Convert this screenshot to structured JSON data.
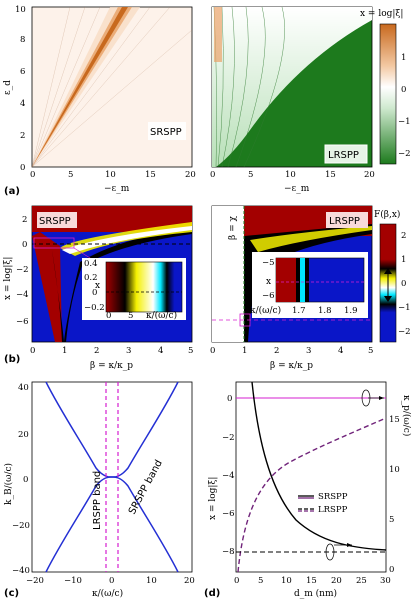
{
  "panels": {
    "a": {
      "label": "(a)",
      "left": {
        "ylabel": "ε_d",
        "xlabel": "−ε_m",
        "tag": "SRSPP",
        "xticks": [
          "0",
          "5",
          "10",
          "15",
          "20"
        ],
        "yticks": [
          "0",
          "2",
          "4",
          "6",
          "8",
          "10"
        ]
      },
      "right": {
        "xlabel": "−ε_m",
        "tag": "LRSPP",
        "xticks": [
          "0",
          "5",
          "10",
          "15",
          "20"
        ]
      },
      "colorbar": {
        "title": "x = log|ξ|",
        "ticks": [
          "1",
          "0",
          "−1",
          "−2"
        ]
      }
    },
    "b": {
      "label": "(b)",
      "left": {
        "ylabel": "x = log|ξ|",
        "xlabel": "β = κ/κ_p",
        "tag": "SRSPP",
        "xticks": [
          "0",
          "1",
          "2",
          "3",
          "4",
          "5"
        ],
        "yticks": [
          "2",
          "0",
          "−2",
          "−4",
          "−6"
        ],
        "inset": {
          "xlabel": "κ/(ω/c)",
          "ylabel": "x",
          "xticks": [
            "0",
            "5",
            "10"
          ],
          "yticks": [
            "0.4",
            "0.2",
            "0",
            "−0.2"
          ]
        }
      },
      "right": {
        "xlabel": "β = κ/κ_p",
        "tag": "LRSPP",
        "vline_label": "β = χ",
        "xticks": [
          "0",
          "1",
          "2",
          "3",
          "4",
          "5"
        ],
        "inset": {
          "xlabel": "κ/(ω/c)",
          "ylabel": "x",
          "xticks": [
            "1.7",
            "1.8",
            "1.9"
          ],
          "yticks": [
            "−5",
            "−6"
          ]
        }
      },
      "colorbar": {
        "title": "F(β,x)",
        "ticks": [
          "2",
          "1",
          "0",
          "−1",
          "−2"
        ]
      }
    },
    "c": {
      "label": "(c)",
      "ylabel": "k_B/(ω/c)",
      "xlabel": "κ/(ω/c)",
      "xticks": [
        "−20",
        "−10",
        "0",
        "10",
        "20"
      ],
      "yticks": [
        "40",
        "20",
        "0",
        "−20",
        "−40"
      ],
      "band_lr": "LRSPP band",
      "band_sr": "SRSPP band"
    },
    "d": {
      "label": "(d)",
      "ylabel_left": "x = log|ξ|",
      "ylabel_right": "κ_p/(ω/c)",
      "xlabel": "d_m (nm)",
      "xticks": [
        "0",
        "5",
        "10",
        "15",
        "20",
        "25",
        "30"
      ],
      "yticks_left": [
        "0",
        "−2",
        "−4",
        "−6",
        "−8"
      ],
      "yticks_right": [
        "0",
        "5",
        "10",
        "15"
      ],
      "legend": [
        {
          "label": "SRSPP",
          "style": "solid"
        },
        {
          "label": "LRSPP",
          "style": "dashed"
        }
      ]
    }
  },
  "colors": {
    "orange": "#c8691e",
    "green": "#1d7a1d",
    "darkred": "#a30000",
    "blue": "#0a16c8",
    "magenta": "#d61fd0",
    "purple": "#70237a",
    "srblue": "#2430d4"
  }
}
